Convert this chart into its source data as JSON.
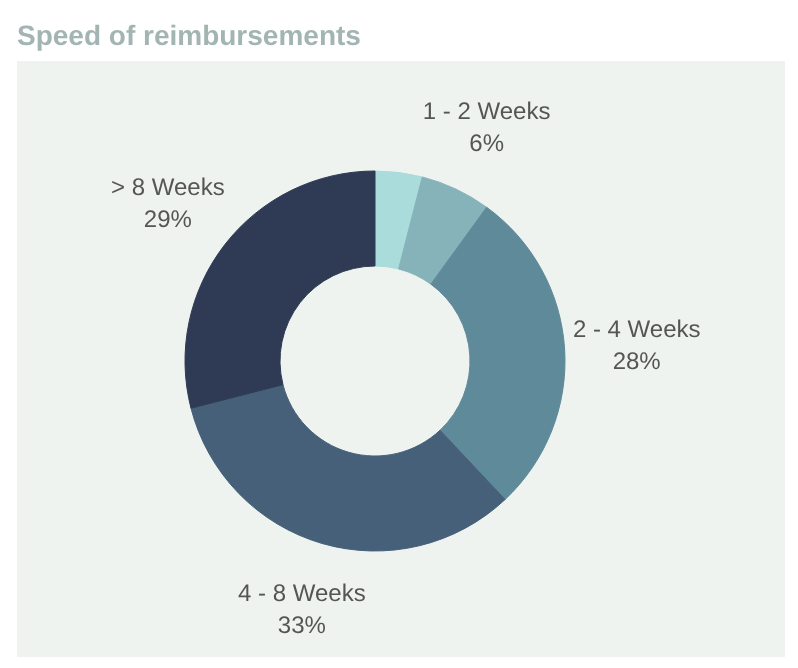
{
  "chart_data": {
    "type": "donut",
    "title": "Speed of reimbursements",
    "categories": [
      null,
      "1 - 2 Weeks",
      "2 - 4 Weeks",
      "4 - 8 Weeks",
      "> 8 Weeks"
    ],
    "values": [
      4,
      6,
      28,
      33,
      29
    ],
    "value_labels": [
      null,
      "6%",
      "28%",
      "33%",
      "29%"
    ],
    "colors": [
      "#a9dcdb",
      "#86b3ba",
      "#5f8a9a",
      "#47607a",
      "#2f3b55"
    ]
  }
}
